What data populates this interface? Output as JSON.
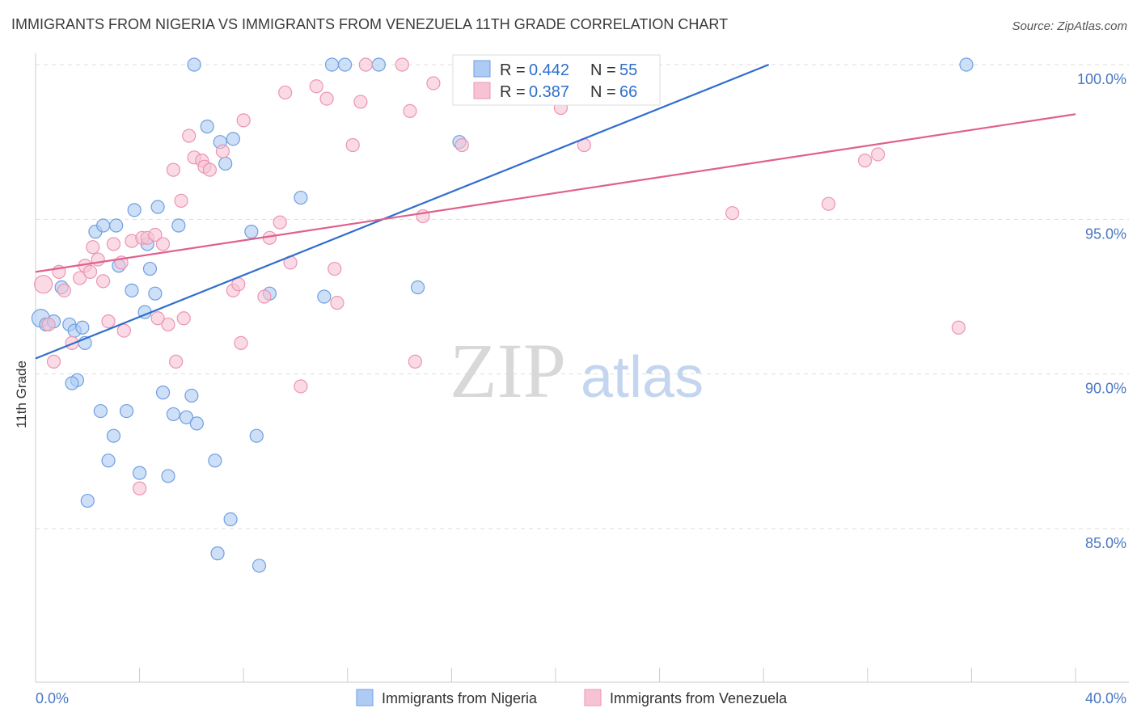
{
  "title": "IMMIGRANTS FROM NIGERIA VS IMMIGRANTS FROM VENEZUELA 11TH GRADE CORRELATION CHART",
  "source": "Source: ZipAtlas.com",
  "watermark": {
    "zip": "ZIP",
    "atlas": "atlas"
  },
  "colors": {
    "nigeria_fill": "#aecbf3",
    "nigeria_stroke": "#6f9fe0",
    "nigeria_line": "#2f6fcb",
    "venezuela_fill": "#f7c3d4",
    "venezuela_stroke": "#ec94b2",
    "venezuela_line": "#e0608e",
    "axis_text": "#4a78c4",
    "grid": "#dddddd"
  },
  "legend_top": {
    "nigeria": {
      "r_label": "R = ",
      "r_value": "0.442",
      "n_label": "N = ",
      "n_value": "55"
    },
    "venezuela": {
      "r_label": "R = ",
      "r_value": "0.387",
      "n_label": "N = ",
      "n_value": "66"
    }
  },
  "chart_data": {
    "type": "scatter",
    "title": "IMMIGRANTS FROM NIGERIA VS IMMIGRANTS FROM VENEZUELA 11TH GRADE CORRELATION CHART",
    "xlabel": "",
    "ylabel": "11th Grade",
    "xlim": [
      0,
      40
    ],
    "ylim": [
      80.5,
      100.7
    ],
    "x_tick_labels": [
      {
        "value": 0,
        "label": "0.0%"
      },
      {
        "value": 40,
        "label": "40.0%"
      }
    ],
    "y_ticks": [
      {
        "value": 85,
        "label": "85.0%"
      },
      {
        "value": 90,
        "label": "90.0%"
      },
      {
        "value": 95,
        "label": "95.0%"
      },
      {
        "value": 100,
        "label": "100.0%"
      }
    ],
    "grid": true,
    "legend_position": "bottom",
    "series": [
      {
        "name": "Immigrants from Nigeria",
        "color": "#aecbf3",
        "trendline": {
          "x": [
            0,
            28.2
          ],
          "y": [
            90.5,
            100.0
          ]
        },
        "points": [
          [
            0.2,
            91.8
          ],
          [
            0.4,
            91.6
          ],
          [
            0.7,
            91.7
          ],
          [
            1.0,
            92.8
          ],
          [
            1.3,
            91.6
          ],
          [
            1.5,
            91.4
          ],
          [
            1.6,
            89.8
          ],
          [
            1.8,
            91.5
          ],
          [
            1.9,
            91.0
          ],
          [
            2.3,
            94.6
          ],
          [
            2.6,
            94.8
          ],
          [
            3.1,
            94.8
          ],
          [
            3.2,
            93.5
          ],
          [
            3.5,
            88.8
          ],
          [
            3.0,
            88.0
          ],
          [
            2.8,
            87.2
          ],
          [
            2.0,
            85.9
          ],
          [
            2.5,
            88.8
          ],
          [
            3.8,
            95.3
          ],
          [
            3.7,
            92.7
          ],
          [
            4.0,
            86.8
          ],
          [
            4.2,
            92.0
          ],
          [
            4.3,
            94.2
          ],
          [
            4.4,
            93.4
          ],
          [
            4.6,
            92.6
          ],
          [
            4.7,
            95.4
          ],
          [
            4.9,
            89.4
          ],
          [
            5.1,
            86.7
          ],
          [
            5.3,
            88.7
          ],
          [
            5.5,
            94.8
          ],
          [
            5.8,
            88.6
          ],
          [
            6.0,
            89.3
          ],
          [
            6.2,
            88.4
          ],
          [
            6.1,
            100.0
          ],
          [
            6.6,
            98.0
          ],
          [
            6.9,
            87.2
          ],
          [
            7.1,
            97.5
          ],
          [
            7.0,
            84.2
          ],
          [
            7.3,
            96.8
          ],
          [
            7.5,
            85.3
          ],
          [
            8.3,
            94.6
          ],
          [
            8.5,
            88.0
          ],
          [
            8.6,
            83.8
          ],
          [
            9.0,
            92.6
          ],
          [
            10.2,
            95.7
          ],
          [
            11.1,
            92.5
          ],
          [
            11.4,
            100.0
          ],
          [
            11.9,
            100.0
          ],
          [
            13.2,
            100.0
          ],
          [
            14.7,
            92.8
          ],
          [
            16.3,
            97.5
          ],
          [
            16.9,
            100.0
          ],
          [
            35.8,
            100.0
          ],
          [
            7.6,
            97.6
          ],
          [
            1.4,
            89.7
          ]
        ]
      },
      {
        "name": "Immigrants from Venezuela",
        "color": "#f7c3d4",
        "trendline": {
          "x": [
            0,
            40
          ],
          "y": [
            93.3,
            98.4
          ]
        },
        "points": [
          [
            0.3,
            92.9
          ],
          [
            0.5,
            91.6
          ],
          [
            0.7,
            90.4
          ],
          [
            0.9,
            93.3
          ],
          [
            1.1,
            92.7
          ],
          [
            1.4,
            91.0
          ],
          [
            1.7,
            93.1
          ],
          [
            1.9,
            93.5
          ],
          [
            2.1,
            93.3
          ],
          [
            2.2,
            94.1
          ],
          [
            2.4,
            93.7
          ],
          [
            2.6,
            93.0
          ],
          [
            2.8,
            91.7
          ],
          [
            3.0,
            94.2
          ],
          [
            3.3,
            93.6
          ],
          [
            3.4,
            91.4
          ],
          [
            3.7,
            94.3
          ],
          [
            4.0,
            86.3
          ],
          [
            4.1,
            94.4
          ],
          [
            4.3,
            94.4
          ],
          [
            4.6,
            94.5
          ],
          [
            4.7,
            91.8
          ],
          [
            4.9,
            94.2
          ],
          [
            5.1,
            91.6
          ],
          [
            5.3,
            96.6
          ],
          [
            5.4,
            90.4
          ],
          [
            5.7,
            91.8
          ],
          [
            5.9,
            97.7
          ],
          [
            6.1,
            97.0
          ],
          [
            6.4,
            96.9
          ],
          [
            6.5,
            96.7
          ],
          [
            6.7,
            96.6
          ],
          [
            7.2,
            97.2
          ],
          [
            7.6,
            92.7
          ],
          [
            7.8,
            92.9
          ],
          [
            7.9,
            91.0
          ],
          [
            8.0,
            98.2
          ],
          [
            8.8,
            92.5
          ],
          [
            9.0,
            94.4
          ],
          [
            9.4,
            94.9
          ],
          [
            9.6,
            99.1
          ],
          [
            9.8,
            93.6
          ],
          [
            10.2,
            89.6
          ],
          [
            10.8,
            99.3
          ],
          [
            11.2,
            98.9
          ],
          [
            11.5,
            93.4
          ],
          [
            11.6,
            92.3
          ],
          [
            12.2,
            97.4
          ],
          [
            12.5,
            98.8
          ],
          [
            14.1,
            100.0
          ],
          [
            14.4,
            98.5
          ],
          [
            14.6,
            90.4
          ],
          [
            14.9,
            95.1
          ],
          [
            15.3,
            99.4
          ],
          [
            16.4,
            97.4
          ],
          [
            18.0,
            100.0
          ],
          [
            20.2,
            98.6
          ],
          [
            21.1,
            97.4
          ],
          [
            26.8,
            95.2
          ],
          [
            30.5,
            95.5
          ],
          [
            31.9,
            96.9
          ],
          [
            32.4,
            97.1
          ],
          [
            35.5,
            91.5
          ],
          [
            12.7,
            100.0
          ],
          [
            5.6,
            95.6
          ],
          [
            17.1,
            100.0
          ]
        ]
      }
    ]
  },
  "bottom_legend": {
    "nigeria": "Immigrants from Nigeria",
    "venezuela": "Immigrants from Venezuela"
  }
}
